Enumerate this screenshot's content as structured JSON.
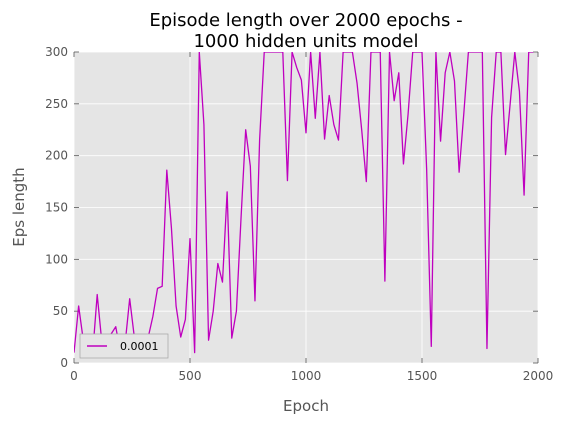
{
  "chart_data": {
    "type": "line",
    "title_lines": [
      "Episode length over 2000 epochs -",
      "1000 hidden units model"
    ],
    "xlabel": "Epoch",
    "ylabel": "Eps length",
    "xlim": [
      0,
      2000
    ],
    "ylim": [
      0,
      300
    ],
    "xticks": [
      0,
      500,
      1000,
      1500,
      2000
    ],
    "yticks": [
      0,
      50,
      100,
      150,
      200,
      250,
      300
    ],
    "grid": true,
    "legend_position": "lower-left",
    "colors": {
      "series": "#bf00bf",
      "plot_bg": "#e5e5e5",
      "grid": "#ffffff"
    },
    "series": [
      {
        "name": "0.0001",
        "x": [
          0,
          20,
          40,
          60,
          80,
          100,
          120,
          140,
          160,
          180,
          200,
          220,
          240,
          260,
          280,
          300,
          320,
          340,
          360,
          380,
          400,
          420,
          440,
          460,
          480,
          500,
          520,
          540,
          560,
          580,
          600,
          620,
          640,
          660,
          680,
          700,
          720,
          740,
          760,
          780,
          800,
          820,
          840,
          860,
          880,
          900,
          920,
          940,
          960,
          980,
          1000,
          1020,
          1040,
          1060,
          1080,
          1100,
          1120,
          1140,
          1160,
          1180,
          1200,
          1220,
          1240,
          1260,
          1280,
          1300,
          1320,
          1340,
          1360,
          1380,
          1400,
          1420,
          1440,
          1460,
          1480,
          1500,
          1520,
          1540,
          1560,
          1580,
          1600,
          1620,
          1640,
          1660,
          1680,
          1700,
          1720,
          1740,
          1760,
          1780,
          1800,
          1820,
          1840,
          1860,
          1880,
          1900,
          1920,
          1940,
          1960,
          1980
        ],
        "y": [
          10,
          55,
          22,
          12,
          8,
          66,
          20,
          15,
          28,
          35,
          10,
          18,
          62,
          25,
          12,
          15,
          25,
          45,
          72,
          74,
          186,
          130,
          55,
          25,
          42,
          120,
          10,
          300,
          230,
          22,
          50,
          96,
          78,
          165,
          24,
          50,
          140,
          225,
          190,
          60,
          215,
          300,
          300,
          300,
          300,
          300,
          176,
          300,
          285,
          273,
          222,
          300,
          236,
          300,
          216,
          258,
          230,
          215,
          300,
          300,
          300,
          270,
          225,
          175,
          300,
          300,
          300,
          79,
          300,
          253,
          280,
          192,
          240,
          300,
          300,
          300,
          187,
          16,
          300,
          214,
          280,
          300,
          272,
          184,
          240,
          300,
          300,
          300,
          300,
          14,
          237,
          300,
          300,
          201,
          250,
          300,
          262,
          162,
          300,
          300
        ]
      }
    ]
  }
}
